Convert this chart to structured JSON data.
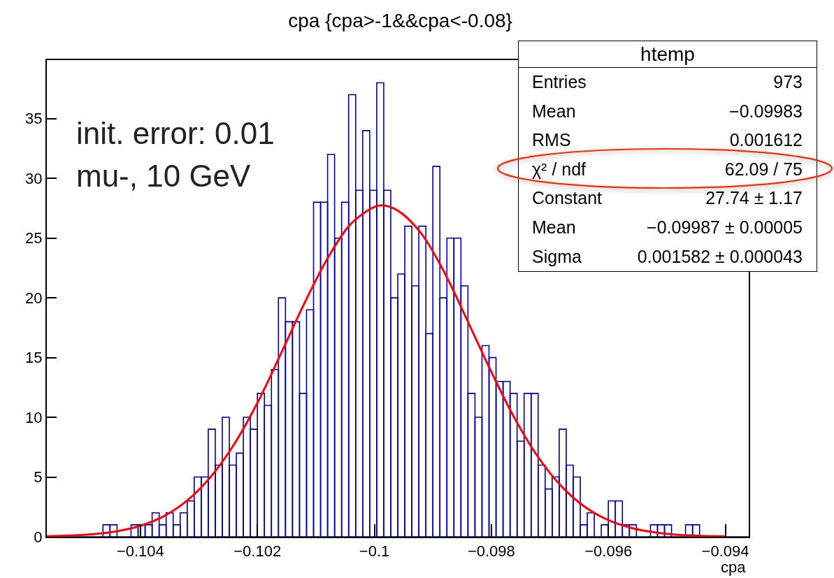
{
  "chart_data": {
    "type": "histogram",
    "title": "cpa {cpa>-1&&cpa<-0.08}",
    "xlabel": "cpa",
    "bins": [
      -0.1056,
      -0.10548,
      -0.10536,
      -0.10524,
      -0.10512,
      -0.105,
      -0.10488,
      -0.10476,
      -0.10464,
      -0.10452,
      -0.1044,
      -0.10428,
      -0.10416,
      -0.10404,
      -0.10392,
      -0.1038,
      -0.10368,
      -0.10356,
      -0.10344,
      -0.10332,
      -0.1032,
      -0.10308,
      -0.10296,
      -0.10284,
      -0.10272,
      -0.1026,
      -0.10248,
      -0.10236,
      -0.10224,
      -0.10212,
      -0.102,
      -0.10188,
      -0.10176,
      -0.10164,
      -0.10152,
      -0.1014,
      -0.10128,
      -0.10116,
      -0.10104,
      -0.10092,
      -0.1008,
      -0.10068,
      -0.10056,
      -0.10044,
      -0.10032,
      -0.1002,
      -0.10008,
      -0.09996,
      -0.09984,
      -0.09972,
      -0.0996,
      -0.09948,
      -0.09936,
      -0.09924,
      -0.09912,
      -0.099,
      -0.09888,
      -0.09876,
      -0.09864,
      -0.09852,
      -0.0984,
      -0.09828,
      -0.09816,
      -0.09804,
      -0.09792,
      -0.0978,
      -0.09768,
      -0.09756,
      -0.09744,
      -0.09732,
      -0.0972,
      -0.09708,
      -0.09696,
      -0.09684,
      -0.09672,
      -0.0966,
      -0.09648,
      -0.09636,
      -0.09624,
      -0.09612,
      -0.096,
      -0.09588,
      -0.09576,
      -0.09564,
      -0.09552,
      -0.0954,
      -0.09528,
      -0.09516,
      -0.09504,
      -0.09492,
      -0.0948,
      -0.09468,
      -0.09456,
      -0.09444,
      -0.09432,
      -0.0942,
      -0.09408,
      -0.09396,
      -0.09384,
      -0.09372,
      -0.0936
    ],
    "series": [
      {
        "color": "#0000a0",
        "values": [
          0,
          0,
          0,
          0,
          0,
          0,
          0,
          0,
          1,
          1,
          0,
          0,
          1,
          1,
          1,
          2,
          1,
          2,
          1,
          2,
          3,
          5,
          5,
          9,
          6,
          10,
          6,
          7,
          10,
          9,
          12,
          11,
          14,
          20,
          18,
          18,
          12,
          19,
          28,
          28,
          32,
          25,
          28,
          37,
          29,
          34,
          29,
          38,
          29,
          20,
          22,
          26,
          21,
          26,
          17,
          31,
          20,
          25,
          25,
          21,
          12,
          10,
          16,
          15,
          13,
          13,
          12,
          8,
          12,
          12,
          6,
          4,
          5,
          9,
          6,
          5,
          1,
          2,
          0,
          1,
          3,
          3,
          1,
          1,
          0,
          0,
          1,
          1,
          1,
          0,
          0,
          1,
          1,
          0,
          0,
          0,
          0,
          0,
          0,
          0
        ]
      },
      {
        "type": "line",
        "color": "#ff0000",
        "x": [
          -0.1056,
          -0.1052,
          -0.1048,
          -0.1044,
          -0.104,
          -0.1036,
          -0.1032,
          -0.1028,
          -0.1024,
          -0.102,
          -0.1016,
          -0.1012,
          -0.1008,
          -0.1004,
          -0.1,
          -0.09987,
          -0.0996,
          -0.0992,
          -0.0988,
          -0.0984,
          -0.098,
          -0.0976,
          -0.0972,
          -0.0968,
          -0.0964,
          -0.096,
          -0.0956,
          -0.0952,
          -0.0948,
          -0.0944,
          -0.094
        ],
        "values": [
          0.04,
          0.1,
          0.22,
          0.46,
          0.92,
          1.72,
          3.03,
          5.0,
          7.72,
          11.2,
          15.3,
          19.5,
          23.3,
          26.2,
          27.6,
          27.74,
          27.3,
          25.4,
          22.1,
          18.0,
          13.8,
          9.9,
          6.67,
          4.22,
          2.5,
          1.39,
          0.73,
          0.36,
          0.16,
          0.07,
          0.03
        ]
      }
    ],
    "xlim": [
      -0.1056,
      -0.0936
    ],
    "xticks": [
      -0.104,
      -0.102,
      -0.1,
      -0.098,
      -0.096,
      -0.094
    ],
    "ylim": [
      0,
      39.9
    ],
    "yticks": [
      0,
      5,
      10,
      15,
      20,
      25,
      30,
      35
    ],
    "grid": false,
    "annotations": [
      "init. error: 0.01",
      "mu-, 10 GeV",
      "htemp",
      "Entries",
      "973",
      "Mean",
      "−0.09983",
      "RMS",
      "0.001612",
      "χ² / ndf",
      "62.09 / 75",
      "Constant",
      "27.74 ± 1.17",
      "Mean",
      "−0.09987 ± 0.00005",
      "Sigma",
      "0.001582 ± 0.000043"
    ]
  }
}
